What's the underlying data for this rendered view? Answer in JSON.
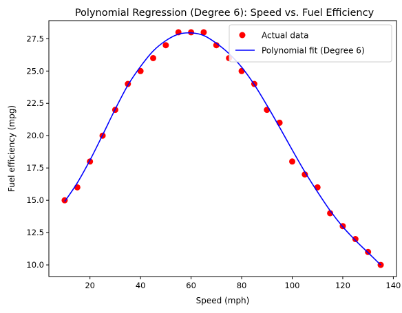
{
  "chart_data": {
    "type": "scatter",
    "title": "Polynomial Regression (Degree 6): Speed vs. Fuel Efficiency",
    "xlabel": "Speed (mph)",
    "ylabel": "Fuel efficiency (mpg)",
    "xlim": [
      3.75,
      141.25
    ],
    "ylim": [
      9.1,
      28.9
    ],
    "xticks": [
      20,
      40,
      60,
      80,
      100,
      120,
      140
    ],
    "xtick_labels": [
      "20",
      "40",
      "60",
      "80",
      "100",
      "120",
      "140"
    ],
    "yticks": [
      10.0,
      12.5,
      15.0,
      17.5,
      20.0,
      22.5,
      25.0,
      27.5
    ],
    "ytick_labels": [
      "10.0",
      "12.5",
      "15.0",
      "17.5",
      "20.0",
      "22.5",
      "25.0",
      "27.5"
    ],
    "grid": false,
    "legend_position": "top-right",
    "series": [
      {
        "name": "Actual data",
        "kind": "scatter",
        "color": "#ff0000",
        "x": [
          10,
          15,
          20,
          25,
          30,
          35,
          40,
          45,
          50,
          55,
          60,
          65,
          70,
          75,
          80,
          85,
          90,
          95,
          100,
          105,
          110,
          115,
          120,
          125,
          130,
          135
        ],
        "y": [
          15,
          16,
          18,
          20,
          22,
          24,
          25,
          26,
          27,
          28,
          28,
          28,
          27,
          26,
          25,
          24,
          22,
          21,
          18,
          17,
          16,
          14,
          13,
          12,
          11,
          10
        ]
      },
      {
        "name": "Polynomial fit (Degree 6)",
        "kind": "line",
        "color": "#0000ff",
        "x": [
          10,
          15,
          20,
          25,
          30,
          35,
          40,
          45,
          50,
          55,
          60,
          65,
          70,
          75,
          80,
          85,
          90,
          95,
          100,
          105,
          110,
          115,
          120,
          125,
          130,
          135
        ],
        "y": [
          14.9,
          16.35,
          18.1,
          20.05,
          22.05,
          23.9,
          25.35,
          26.55,
          27.35,
          27.85,
          27.95,
          27.75,
          27.15,
          26.35,
          25.3,
          23.95,
          22.35,
          20.65,
          18.9,
          17.2,
          15.65,
          14.2,
          12.95,
          11.9,
          10.95,
          10.0
        ]
      }
    ]
  }
}
